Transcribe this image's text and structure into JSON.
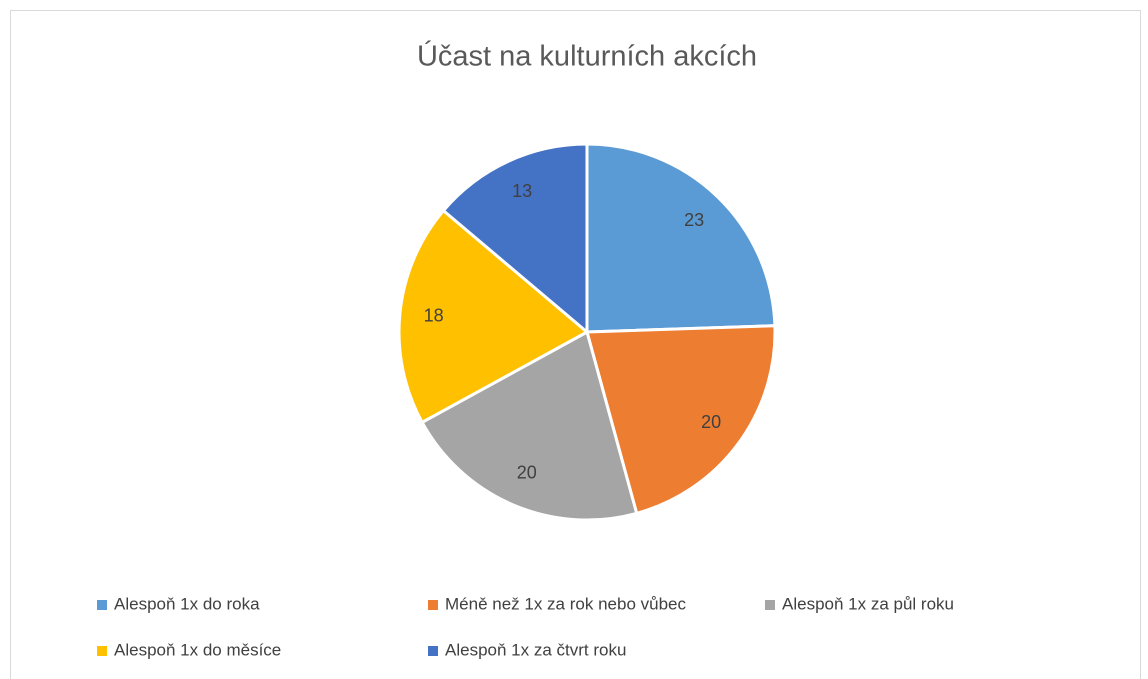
{
  "chart_data": {
    "type": "pie",
    "title": "Účast na kulturních akcích",
    "categories": [
      "Alespoň 1x do roka",
      "Méně než 1x za rok nebo vůbec",
      "Alespoň 1x za půl roku",
      "Alespoň 1x do měsíce",
      "Alespoň 1x za čtvrt roku"
    ],
    "values": [
      23,
      20,
      20,
      18,
      13
    ],
    "colors": [
      "#5b9bd5",
      "#ed7d31",
      "#a5a5a5",
      "#ffc000",
      "#4472c4"
    ],
    "legend": "bottom"
  }
}
